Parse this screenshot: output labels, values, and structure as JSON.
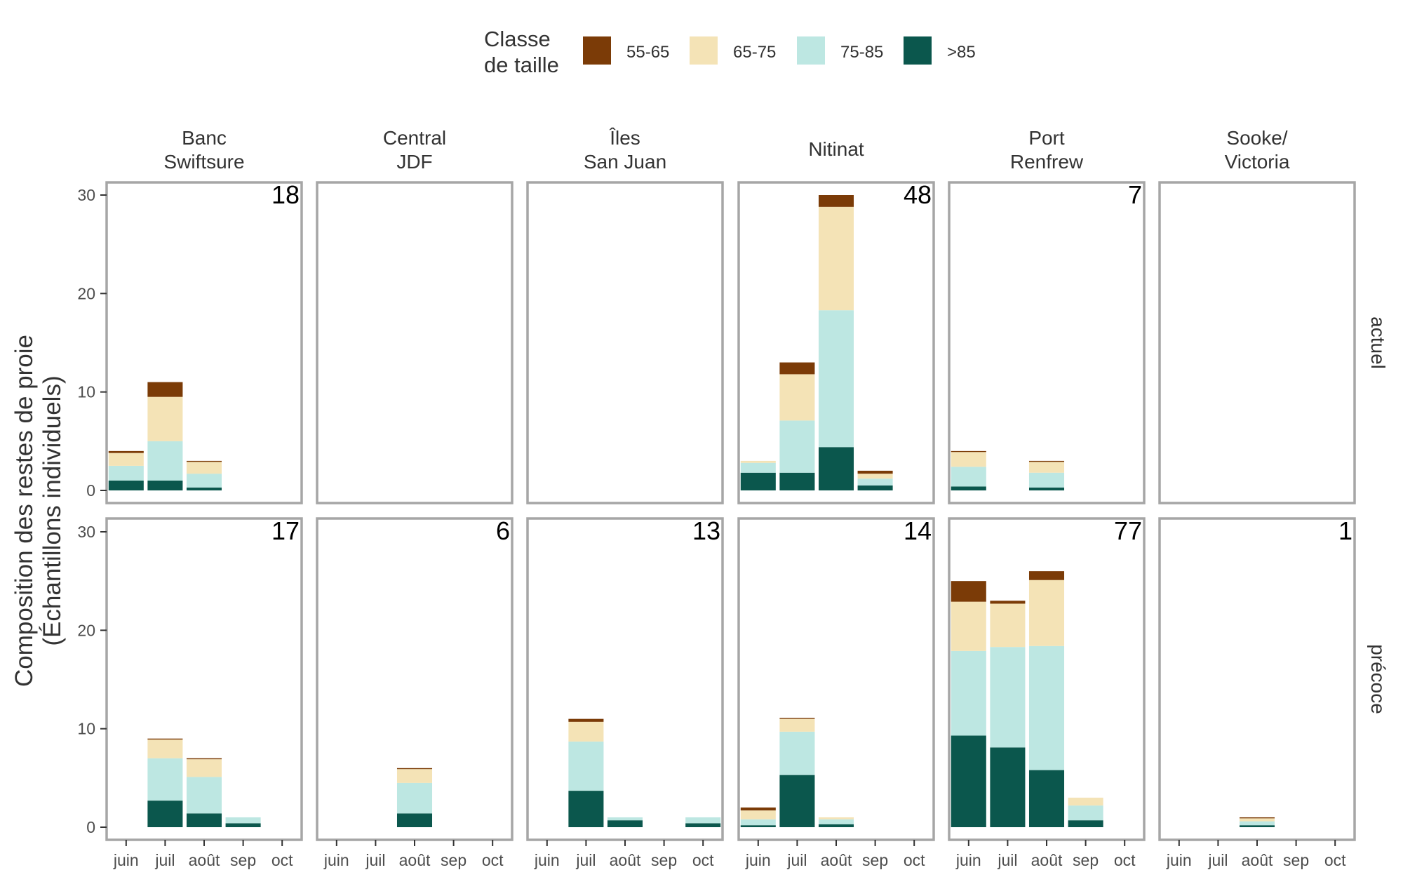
{
  "chart_data": {
    "type": "bar",
    "stacked": true,
    "ylabel_lines": [
      "Composition des restes de proie",
      "(Échantillons individuels)"
    ],
    "legend": {
      "title_lines": [
        "Classe",
        "de taille"
      ],
      "position": "top",
      "entries": [
        {
          "name": "55-65",
          "color": "#7B3B07"
        },
        {
          "name": "65-75",
          "color": "#F4E3B6"
        },
        {
          "name": "75-85",
          "color": "#BDE7E2"
        },
        {
          "name": ">85",
          "color": "#0B574D"
        }
      ]
    },
    "x_categories": [
      "juin",
      "juil",
      "août",
      "sep",
      "oct"
    ],
    "y_ticks": [
      0,
      10,
      20,
      30
    ],
    "ylim": [
      0,
      32
    ],
    "grid": false,
    "columns": [
      {
        "label_lines": [
          "Banc",
          "Swiftsure"
        ]
      },
      {
        "label_lines": [
          "Central",
          "JDF"
        ]
      },
      {
        "label_lines": [
          "Îles",
          "San Juan"
        ]
      },
      {
        "label_lines": [
          "Nitinat"
        ]
      },
      {
        "label_lines": [
          "Port",
          "Renfrew"
        ]
      },
      {
        "label_lines": [
          "Sooke/",
          "Victoria"
        ]
      }
    ],
    "rows": [
      {
        "label": "actuel"
      },
      {
        "label": "précoce"
      }
    ],
    "panels": [
      {
        "row": 0,
        "col": 0,
        "count": "18",
        "bars": [
          {
            "x": "juin",
            "stack": [
              0.2,
              1.3,
              1.5,
              1.0
            ]
          },
          {
            "x": "juil",
            "stack": [
              1.5,
              4.5,
              4.0,
              1.0
            ]
          },
          {
            "x": "août",
            "stack": [
              0.1,
              1.2,
              1.4,
              0.3
            ]
          }
        ]
      },
      {
        "row": 0,
        "col": 1,
        "count": "",
        "bars": []
      },
      {
        "row": 0,
        "col": 2,
        "count": "",
        "bars": []
      },
      {
        "row": 0,
        "col": 3,
        "count": "48",
        "bars": [
          {
            "x": "juin",
            "stack": [
              0.0,
              0.2,
              1.0,
              1.8
            ]
          },
          {
            "x": "juil",
            "stack": [
              1.2,
              4.7,
              5.3,
              1.8
            ]
          },
          {
            "x": "août",
            "stack": [
              1.2,
              10.5,
              13.9,
              4.4
            ]
          },
          {
            "x": "sep",
            "stack": [
              0.3,
              0.5,
              0.7,
              0.5
            ]
          }
        ]
      },
      {
        "row": 0,
        "col": 4,
        "count": "7",
        "bars": [
          {
            "x": "juin",
            "stack": [
              0.1,
              1.5,
              2.0,
              0.4
            ]
          },
          {
            "x": "août",
            "stack": [
              0.1,
              1.1,
              1.5,
              0.3
            ]
          }
        ]
      },
      {
        "row": 0,
        "col": 5,
        "count": "",
        "bars": []
      },
      {
        "row": 1,
        "col": 0,
        "count": "17",
        "bars": [
          {
            "x": "juil",
            "stack": [
              0.1,
              1.9,
              4.3,
              2.7
            ]
          },
          {
            "x": "août",
            "stack": [
              0.1,
              1.8,
              3.7,
              1.4
            ]
          },
          {
            "x": "sep",
            "stack": [
              0.0,
              0.0,
              0.6,
              0.4
            ]
          }
        ]
      },
      {
        "row": 1,
        "col": 1,
        "count": "6",
        "bars": [
          {
            "x": "août",
            "stack": [
              0.1,
              1.4,
              3.1,
              1.4
            ]
          }
        ]
      },
      {
        "row": 1,
        "col": 2,
        "count": "13",
        "bars": [
          {
            "x": "juil",
            "stack": [
              0.3,
              2.0,
              5.0,
              3.7
            ]
          },
          {
            "x": "août",
            "stack": [
              0.0,
              0.0,
              0.3,
              0.7
            ]
          },
          {
            "x": "oct",
            "stack": [
              0.0,
              0.0,
              0.6,
              0.4
            ]
          }
        ]
      },
      {
        "row": 1,
        "col": 3,
        "count": "14",
        "bars": [
          {
            "x": "juin",
            "stack": [
              0.3,
              0.9,
              0.6,
              0.2
            ]
          },
          {
            "x": "juil",
            "stack": [
              0.1,
              1.3,
              4.4,
              5.3
            ]
          },
          {
            "x": "août",
            "stack": [
              0.0,
              0.2,
              0.5,
              0.3
            ]
          }
        ]
      },
      {
        "row": 1,
        "col": 4,
        "count": "77",
        "bars": [
          {
            "x": "juin",
            "stack": [
              2.1,
              5.0,
              8.6,
              9.3
            ]
          },
          {
            "x": "juil",
            "stack": [
              0.3,
              4.4,
              10.2,
              8.1
            ]
          },
          {
            "x": "août",
            "stack": [
              0.9,
              6.7,
              12.6,
              5.8
            ]
          },
          {
            "x": "sep",
            "stack": [
              0.0,
              0.8,
              1.5,
              0.7
            ]
          }
        ]
      },
      {
        "row": 1,
        "col": 5,
        "count": "1",
        "bars": [
          {
            "x": "août",
            "stack": [
              0.1,
              0.3,
              0.4,
              0.2
            ]
          }
        ]
      }
    ]
  }
}
